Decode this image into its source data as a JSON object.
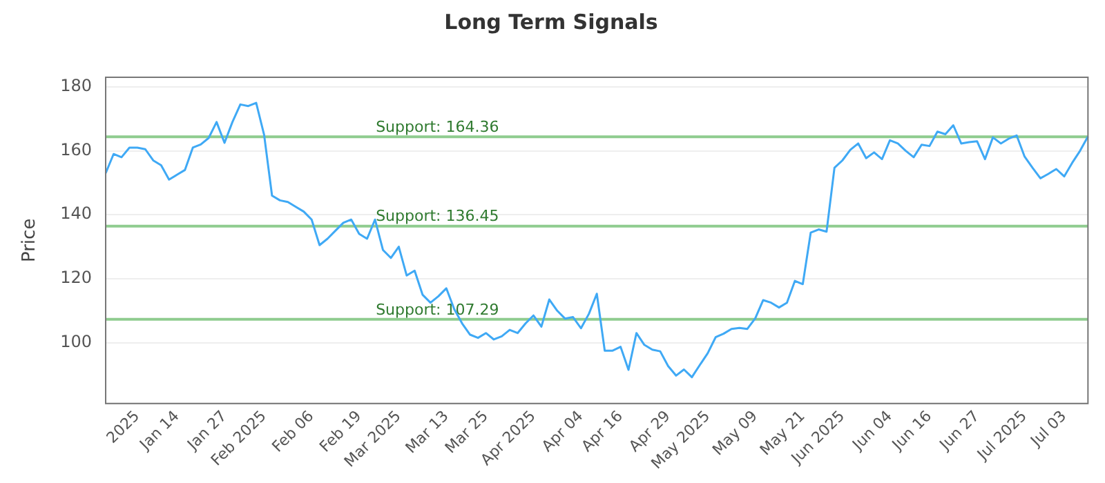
{
  "chart_data": {
    "type": "line",
    "title": "Long Term Signals",
    "ylabel": "Price",
    "categories": [
      null,
      null,
      null,
      null,
      "2025",
      null,
      null,
      null,
      null,
      "Jan 14",
      null,
      null,
      null,
      null,
      null,
      "Jan 27",
      null,
      null,
      null,
      null,
      "Feb 2025",
      null,
      null,
      null,
      null,
      null,
      "Feb 06",
      null,
      null,
      null,
      null,
      null,
      "Feb 19",
      null,
      null,
      null,
      null,
      "Mar 2025",
      null,
      null,
      null,
      null,
      null,
      "Mar 13",
      null,
      null,
      null,
      null,
      "Mar 25",
      null,
      null,
      null,
      null,
      null,
      "Apr 2025",
      null,
      null,
      null,
      null,
      null,
      "Apr 04",
      null,
      null,
      null,
      null,
      "Apr 16",
      null,
      null,
      null,
      null,
      null,
      "Apr 29",
      null,
      null,
      null,
      null,
      "May 2025",
      null,
      null,
      null,
      null,
      null,
      "May 09",
      null,
      null,
      null,
      null,
      null,
      "May 21",
      null,
      null,
      null,
      null,
      "Jun 2025",
      null,
      null,
      null,
      null,
      null,
      "Jun 04",
      null,
      null,
      null,
      null,
      "Jun 16",
      null,
      null,
      null,
      null,
      null,
      "Jun 27",
      null,
      null,
      null,
      null,
      null,
      "Jul 2025",
      null,
      null,
      null,
      null,
      "Jul 03",
      null,
      null,
      null
    ],
    "series": [
      {
        "color": "#3fa9f5",
        "values": [
          153,
          159,
          158,
          161,
          161,
          160.5,
          157,
          155.5,
          151,
          152.5,
          154,
          161,
          162,
          164,
          169,
          162.5,
          169,
          174.5,
          174,
          175,
          165,
          146,
          144.5,
          144,
          142.5,
          141,
          138.5,
          130.5,
          132.5,
          135,
          137.5,
          138.5,
          134,
          132.5,
          138.5,
          129,
          126.5,
          130,
          121,
          122.5,
          115,
          112.5,
          114.5,
          117,
          110.5,
          106,
          102.5,
          101.5,
          103,
          101,
          102,
          104,
          103,
          106,
          108.5,
          105,
          113.5,
          110,
          107.5,
          108,
          104.5,
          109,
          115.3,
          97.5,
          97.5,
          98.7,
          91.5,
          103,
          99.3,
          97.8,
          97.3,
          92.7,
          89.7,
          91.6,
          89.2,
          93,
          96.7,
          101.7,
          102.8,
          104.3,
          104.6,
          104.3,
          107.6,
          113.3,
          112.5,
          111,
          112.5,
          119.3,
          118.3,
          134.4,
          135.4,
          134.7,
          154.7,
          157,
          160.3,
          162.3,
          157.7,
          159.5,
          157.4,
          163.3,
          162.3,
          160,
          158,
          161.9,
          161.5,
          166,
          165.2,
          168,
          162.3,
          162.7,
          163,
          157.4,
          164.2,
          162.3,
          163.8,
          164.8,
          158.2,
          154.7,
          151.4,
          152.8,
          154.3,
          152,
          156.2,
          160,
          164.5
        ]
      }
    ],
    "ylim": [
      81,
      183
    ],
    "yticks": [
      100,
      120,
      140,
      160,
      180
    ],
    "grid": "y",
    "legend": false,
    "marker": "none",
    "line_style": "solid",
    "ref_lines": [
      {
        "axis": "y",
        "value": 164.36,
        "label": "Support: 164.36",
        "color": "#8fcc8f"
      },
      {
        "axis": "y",
        "value": 136.45,
        "label": "Support: 136.45",
        "color": "#8fcc8f"
      },
      {
        "axis": "y",
        "value": 107.29,
        "label": "Support: 107.29",
        "color": "#8fcc8f"
      }
    ]
  }
}
